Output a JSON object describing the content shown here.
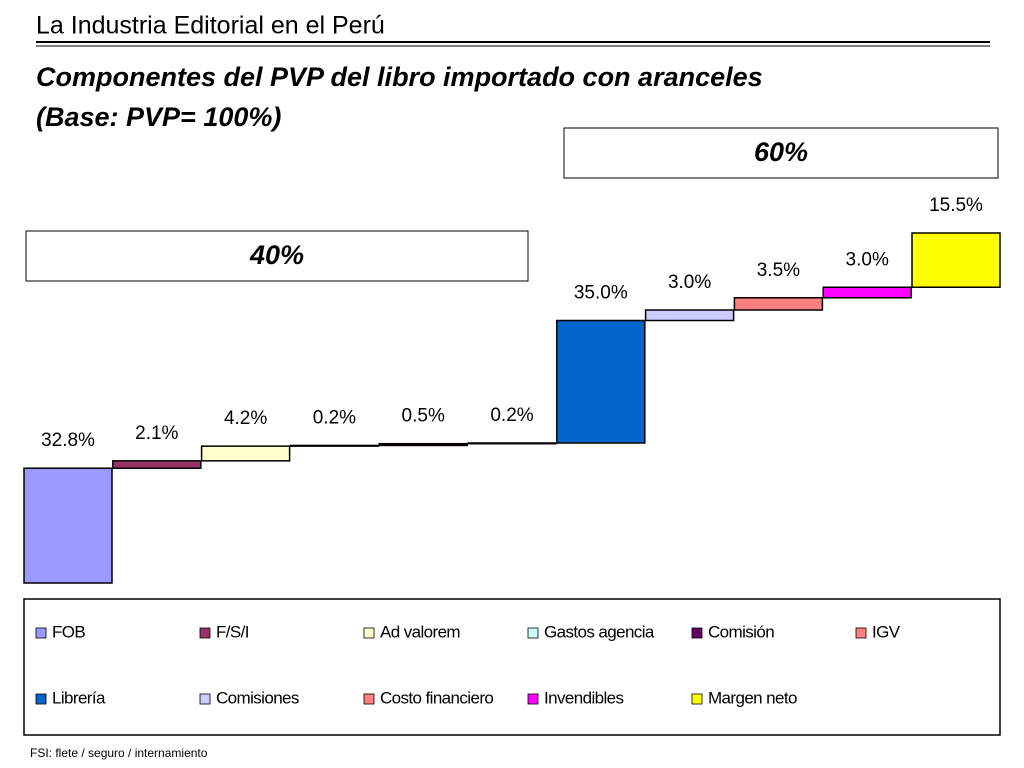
{
  "header": {
    "title": "La Industria Editorial en el Perú"
  },
  "chart_data": {
    "type": "waterfall",
    "title": "Componentes del PVP del libro importado con aranceles",
    "subtitle": "(Base: PVP= 100%)",
    "annotations": [
      "40%",
      "60%"
    ],
    "categories": [
      "FOB",
      "F/S/I",
      "Ad valorem",
      "Gastos agencia",
      "Comisión",
      "IGV",
      "Librería",
      "Comisiones",
      "Costo financiero",
      "Invendibles",
      "Margen neto"
    ],
    "values": [
      32.8,
      2.1,
      4.2,
      0.2,
      0.5,
      0.2,
      35.0,
      3.0,
      3.5,
      3.0,
      15.5
    ],
    "value_labels": [
      "32.8%",
      "2.1%",
      "4.2%",
      "0.2%",
      "0.5%",
      "0.2%",
      "35.0%",
      "3.0%",
      "3.5%",
      "3.0%",
      "15.5%"
    ],
    "colors": [
      "#9999ff",
      "#993366",
      "#ffffcc",
      "#ccffff",
      "#660066",
      "#ff8080",
      "#0066cc",
      "#ccccff",
      "#ff8080",
      "#ff00ff",
      "#ffff00"
    ],
    "legend": "bottom",
    "footnote": "FSI:  flete / seguro / internamiento"
  }
}
